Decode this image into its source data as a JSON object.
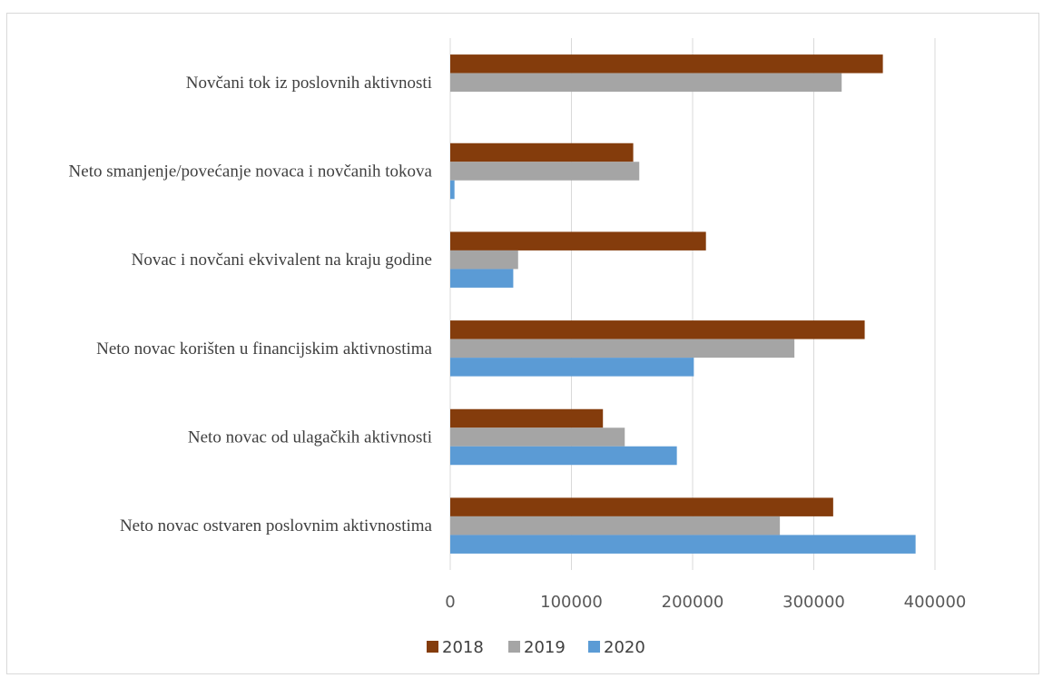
{
  "chart_data": {
    "type": "bar",
    "orientation": "horizontal",
    "title": "",
    "xlabel": "",
    "ylabel": "",
    "categories": [
      "Neto novac ostvaren poslovnim aktivnostima",
      "Neto novac od ulagačkih aktivnosti",
      "Neto novac korišten u financijskim aktivnostima",
      "Novac i novčani ekvivalent na kraju godine",
      "Neto smanjenje/povećanje novaca i novčanih tokova",
      "Novčani tok iz poslovnih aktivnosti"
    ],
    "series": [
      {
        "name": "2018",
        "color": "#843c0c",
        "values": [
          316000,
          126000,
          342000,
          211000,
          151000,
          357000
        ]
      },
      {
        "name": "2019",
        "color": "#a5a5a5",
        "values": [
          272000,
          144000,
          284000,
          56000,
          156000,
          323000
        ]
      },
      {
        "name": "2020",
        "color": "#5b9bd5",
        "values": [
          384000,
          187000,
          201000,
          52000,
          3500,
          null
        ]
      }
    ],
    "xlim": [
      0,
      400000
    ],
    "ticks": [
      "0",
      "100000",
      "200000",
      "300000",
      "400000"
    ],
    "grid": true,
    "legend_position": "bottom"
  }
}
